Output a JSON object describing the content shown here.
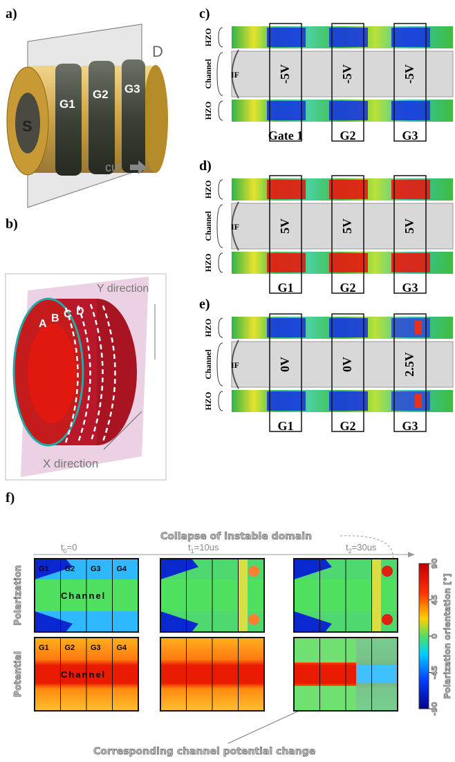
{
  "panels": {
    "a": {
      "label": "a)",
      "source": "S",
      "gates": [
        "G1",
        "G2",
        "G3"
      ],
      "drain": "D",
      "cut": "cut"
    },
    "b": {
      "label": "b)",
      "y_direction": "Y direction",
      "x_direction": "X direction",
      "rings": [
        "A",
        "B",
        "C",
        "D"
      ]
    },
    "c": {
      "label": "c)",
      "rows": [
        "HZO",
        "Channel",
        "HZO"
      ],
      "interface": "IF",
      "voltages": [
        "-5V",
        "-5V",
        "-5V"
      ],
      "gates": [
        "Gate 1",
        "G2",
        "G3"
      ]
    },
    "d": {
      "label": "d)",
      "rows": [
        "HZO",
        "Channel",
        "HZO"
      ],
      "interface": "IF",
      "voltages": [
        "5V",
        "5V",
        "5V"
      ],
      "gates": [
        "G1",
        "G2",
        "G3"
      ]
    },
    "e": {
      "label": "e)",
      "rows": [
        "HZO",
        "Channel",
        "HZO"
      ],
      "interface": "IF",
      "voltages": [
        "0V",
        "0V",
        "2.5V"
      ],
      "gates": [
        "G1",
        "G2",
        "G3"
      ]
    },
    "f": {
      "label": "f)",
      "annotation_top": "Collapse of instable domain",
      "annotation_bottom": "Corresponding channel potential change",
      "times": [
        {
          "base": "t",
          "sub": "0",
          "rest": "=0"
        },
        {
          "base": "t",
          "sub": "1",
          "rest": "=10us"
        },
        {
          "base": "t",
          "sub": "2",
          "rest": "=30us"
        }
      ],
      "row_labels": [
        "Polarization",
        "Potential"
      ],
      "gates": [
        "G1",
        "G2",
        "G3",
        "G4"
      ],
      "channel": "Channel",
      "colorbar": {
        "title": "Polarization orientation [°]",
        "ticks": [
          90,
          45,
          0,
          -45,
          -90
        ]
      }
    }
  }
}
